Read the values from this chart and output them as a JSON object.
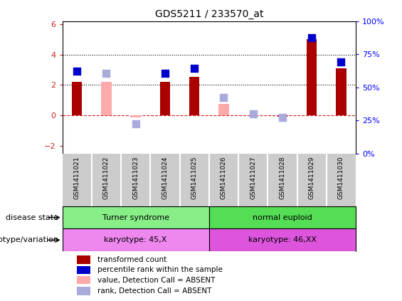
{
  "title": "GDS5211 / 233570_at",
  "samples": [
    "GSM1411021",
    "GSM1411022",
    "GSM1411023",
    "GSM1411024",
    "GSM1411025",
    "GSM1411026",
    "GSM1411027",
    "GSM1411028",
    "GSM1411029",
    "GSM1411030"
  ],
  "transformed_count": [
    2.2,
    null,
    null,
    2.2,
    2.55,
    null,
    null,
    -0.08,
    5.0,
    3.1
  ],
  "transformed_count_absent": [
    null,
    2.2,
    -0.12,
    null,
    null,
    0.75,
    null,
    null,
    null,
    null
  ],
  "percentile_rank": [
    2.9,
    null,
    null,
    2.75,
    3.1,
    null,
    null,
    null,
    5.1,
    3.5
  ],
  "percentile_rank_absent": [
    null,
    2.75,
    -0.55,
    null,
    null,
    1.2,
    0.1,
    -0.12,
    null,
    null
  ],
  "ylim_left": [
    -2.5,
    6.2
  ],
  "left_ticks": [
    -2,
    0,
    2,
    4,
    6
  ],
  "right_ticks": [
    0,
    25,
    50,
    75,
    100
  ],
  "right_tick_labels": [
    "0%",
    "25%",
    "50%",
    "75%",
    "100%"
  ],
  "hlines": [
    4.0,
    2.0
  ],
  "disease_state_groups": [
    {
      "label": "Turner syndrome",
      "start": 0,
      "end": 5,
      "color": "#88ee88"
    },
    {
      "label": "normal euploid",
      "start": 5,
      "end": 10,
      "color": "#55dd55"
    }
  ],
  "genotype_groups": [
    {
      "label": "karyotype: 45,X",
      "start": 0,
      "end": 5,
      "color": "#ee88ee"
    },
    {
      "label": "karyotype: 46,XX",
      "start": 5,
      "end": 10,
      "color": "#dd55dd"
    }
  ],
  "bar_color_present": "#aa0000",
  "bar_color_absent": "#ffaaaa",
  "rank_color_present": "#0000cc",
  "rank_color_absent": "#aaaadd",
  "dashed_line_color": "#cc2222",
  "bar_width": 0.35,
  "rank_marker_size": 45,
  "left_tick_color": "#cc2222",
  "legend_items": [
    {
      "label": "transformed count",
      "color": "#aa0000"
    },
    {
      "label": "percentile rank within the sample",
      "color": "#0000cc"
    },
    {
      "label": "value, Detection Call = ABSENT",
      "color": "#ffaaaa"
    },
    {
      "label": "rank, Detection Call = ABSENT",
      "color": "#aaaadd"
    }
  ]
}
